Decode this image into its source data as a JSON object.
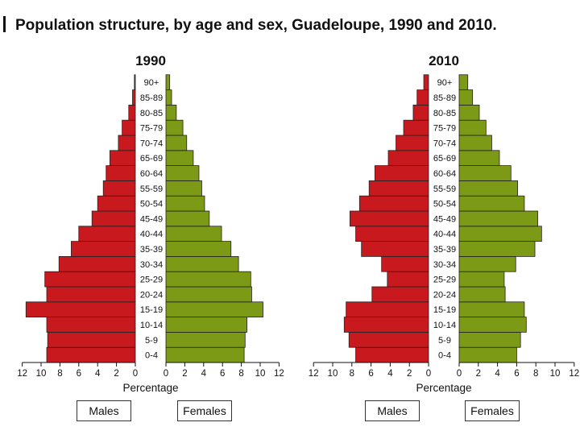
{
  "title": "Population structure, by age and sex,  Guadeloupe, 1990 and 2010.",
  "chart_data": [
    {
      "type": "bar",
      "title": "1990",
      "orientation": "horizontal-pyramid",
      "categories": [
        "0-4",
        "5-9",
        "10-14",
        "15-19",
        "20-24",
        "25-29",
        "30-34",
        "35-39",
        "40-44",
        "45-49",
        "50-54",
        "55-59",
        "60-64",
        "65-69",
        "70-74",
        "75-79",
        "80-85",
        "85-89",
        "90+"
      ],
      "series": [
        {
          "name": "Males",
          "color": "#c8191e",
          "values": [
            9.4,
            9.3,
            9.4,
            11.6,
            9.4,
            9.6,
            8.1,
            6.8,
            6.0,
            4.6,
            4.0,
            3.4,
            3.1,
            2.7,
            1.8,
            1.4,
            0.7,
            0.3,
            0.1
          ]
        },
        {
          "name": "Females",
          "color": "#7c9a16",
          "values": [
            8.3,
            8.4,
            8.6,
            10.3,
            9.1,
            9.0,
            7.7,
            6.9,
            5.9,
            4.6,
            4.1,
            3.8,
            3.5,
            2.9,
            2.2,
            1.8,
            1.1,
            0.6,
            0.4
          ]
        }
      ],
      "xlabel": "Percentage",
      "xticks": [
        "12",
        "10",
        "8",
        "6",
        "4",
        "2",
        "0",
        "0",
        "2",
        "4",
        "6",
        "8",
        "10",
        "12"
      ],
      "xlim": [
        0,
        12
      ]
    },
    {
      "type": "bar",
      "title": "2010",
      "orientation": "horizontal-pyramid",
      "categories": [
        "0-4",
        "5-9",
        "10-14",
        "15-19",
        "20-24",
        "25-29",
        "30-34",
        "35-39",
        "40-44",
        "45-49",
        "50-54",
        "55-59",
        "60-64",
        "65-69",
        "70-74",
        "75-79",
        "80-85",
        "85-89",
        "90+"
      ],
      "series": [
        {
          "name": "Males",
          "color": "#c8191e",
          "values": [
            7.6,
            8.3,
            8.8,
            8.6,
            5.9,
            4.3,
            4.9,
            7.0,
            7.6,
            8.2,
            7.2,
            6.2,
            5.6,
            4.2,
            3.4,
            2.6,
            1.6,
            1.2,
            0.5
          ]
        },
        {
          "name": "Females",
          "color": "#7c9a16",
          "values": [
            6.0,
            6.4,
            7.0,
            6.8,
            4.8,
            4.7,
            5.9,
            7.9,
            8.6,
            8.2,
            6.8,
            6.1,
            5.4,
            4.2,
            3.4,
            2.8,
            2.1,
            1.4,
            0.9
          ]
        }
      ],
      "xlabel": "Percentage",
      "xticks": [
        "12",
        "10",
        "8",
        "6",
        "4",
        "2",
        "0",
        "0",
        "2",
        "4",
        "6",
        "8",
        "10",
        "12"
      ],
      "xlim": [
        0,
        12
      ]
    }
  ],
  "legend": {
    "males": "Males",
    "females": "Females"
  }
}
